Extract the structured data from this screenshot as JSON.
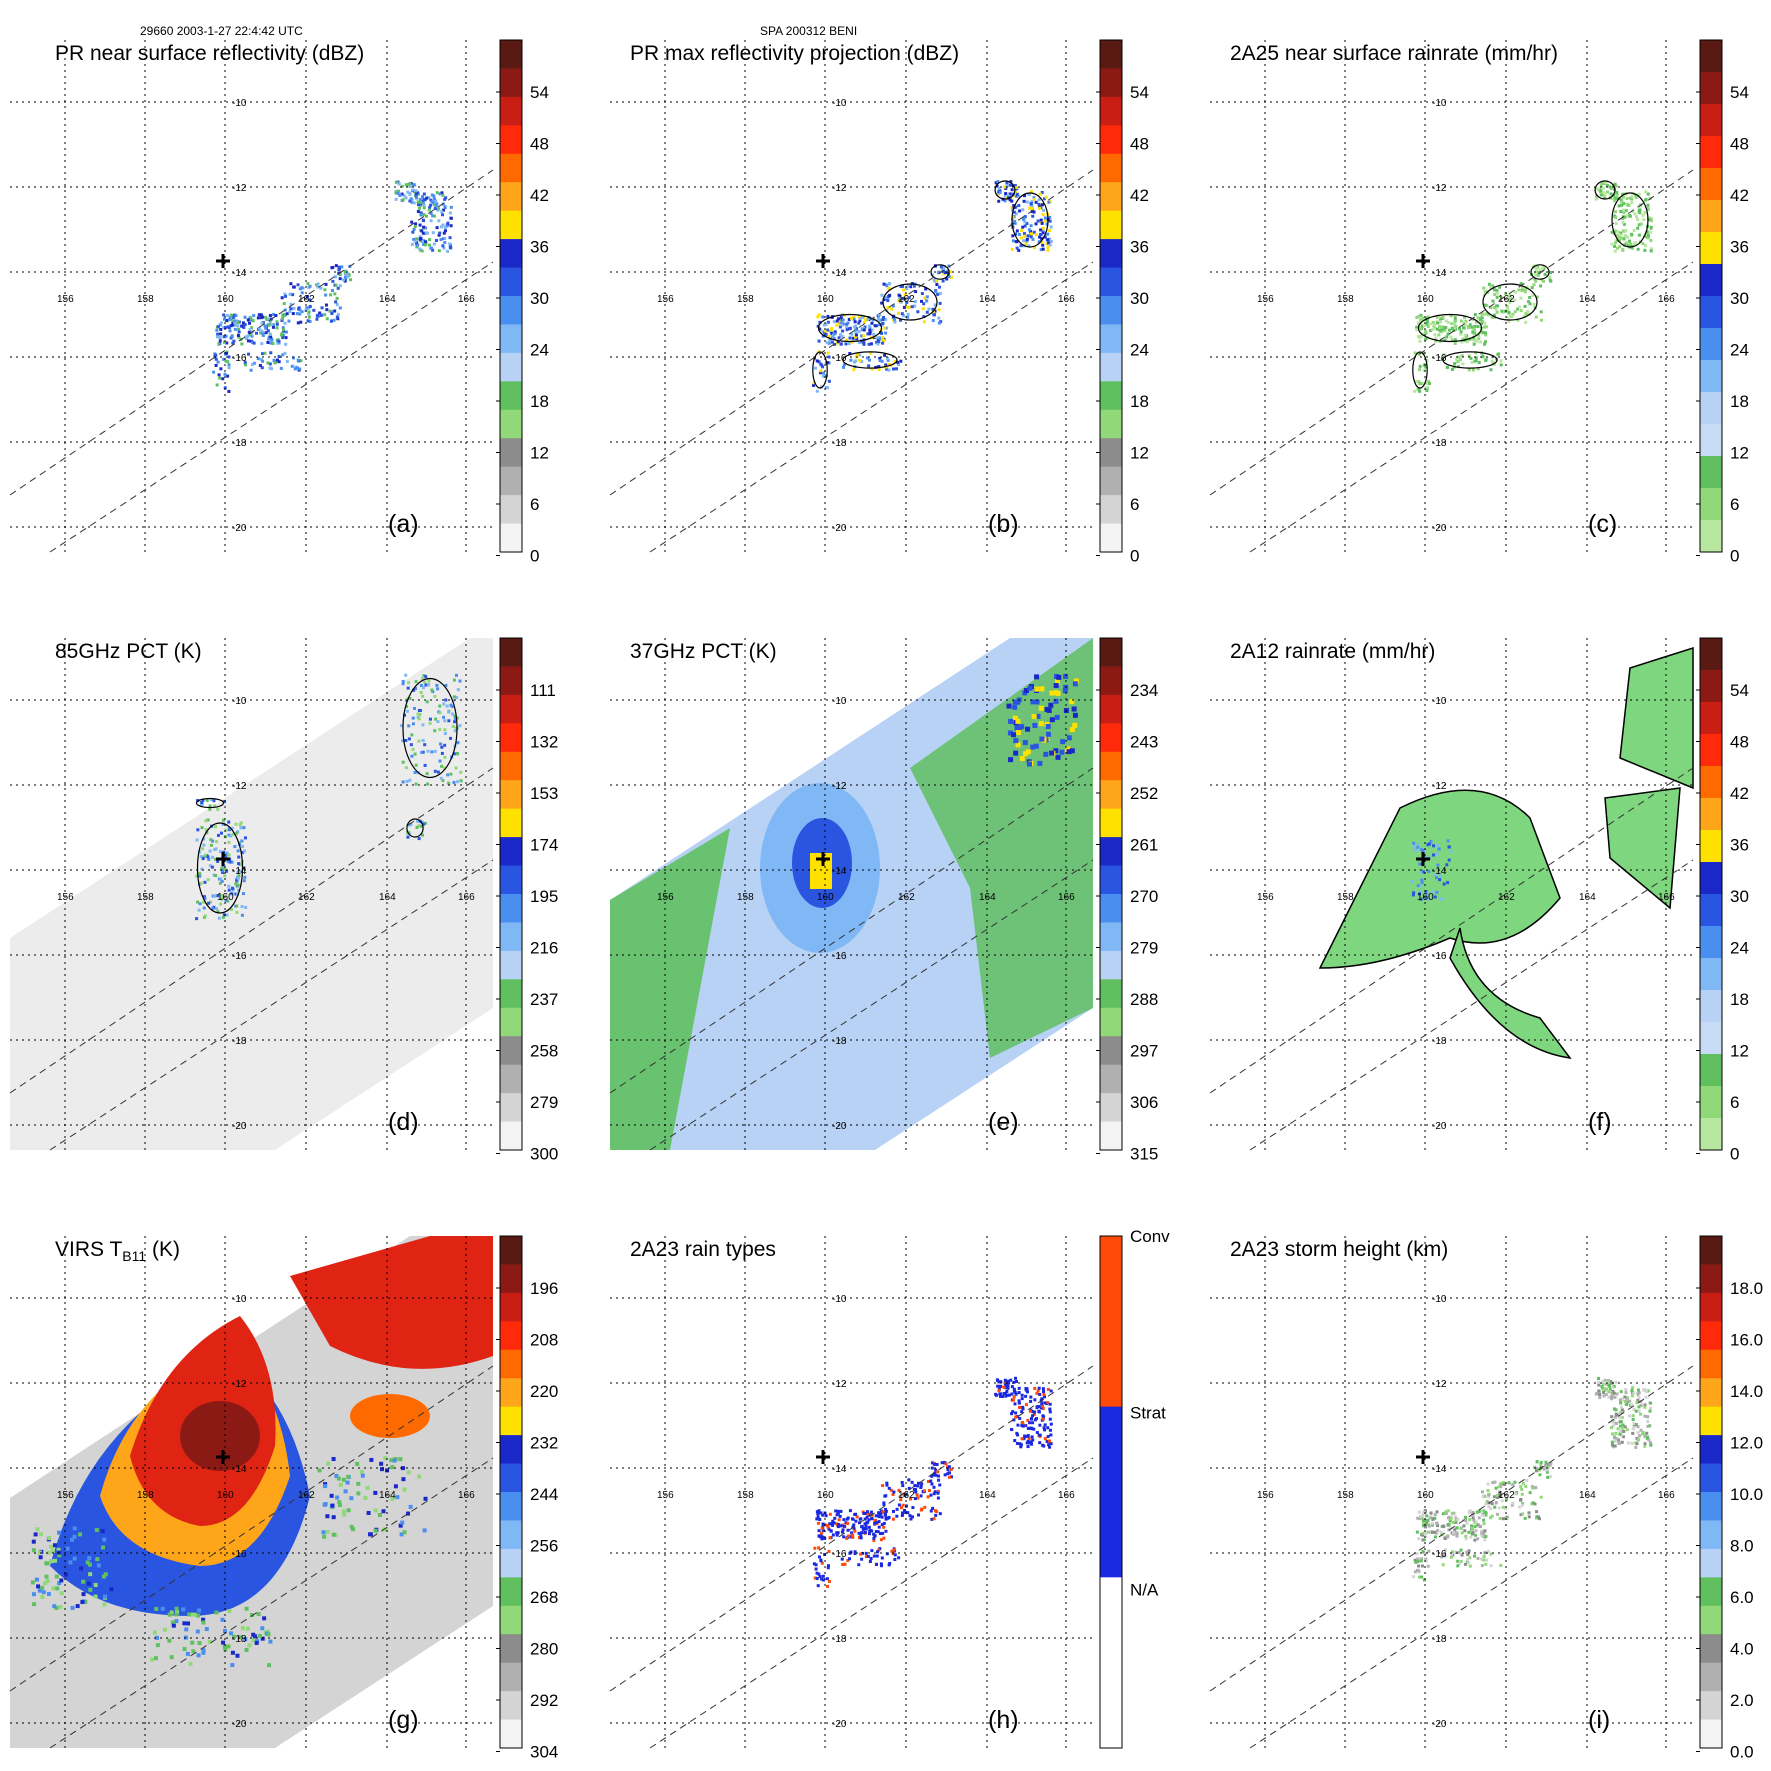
{
  "header": {
    "left": "29660 2003-1-27 22:4:42 UTC",
    "center": "SPA 200312 BENI"
  },
  "map_grid": {
    "lon_labels": [
      "156",
      "158",
      "160",
      "162",
      "164",
      "166"
    ],
    "lat_labels": [
      "-10",
      "-12",
      "-14",
      "-16",
      "-18",
      "-20"
    ]
  },
  "panels": [
    {
      "id": "a",
      "label": "(a)",
      "title": "PR near surface reflectivity (dBZ)",
      "colorbar": {
        "style": "refl",
        "ticks": [
          "54",
          "48",
          "42",
          "36",
          "30",
          "24",
          "18",
          "12",
          "6",
          "0"
        ]
      },
      "content": "pr_near",
      "palette": "refl"
    },
    {
      "id": "b",
      "label": "(b)",
      "title": "PR max reflectivity projection (dBZ)",
      "colorbar": {
        "style": "refl",
        "ticks": [
          "54",
          "48",
          "42",
          "36",
          "30",
          "24",
          "18",
          "12",
          "6",
          "0"
        ]
      },
      "content": "pr_max",
      "palette": "refl"
    },
    {
      "id": "c",
      "label": "(c)",
      "title": "2A25 near surface rainrate (mm/hr)",
      "colorbar": {
        "style": "rain",
        "ticks": [
          "54",
          "48",
          "42",
          "36",
          "30",
          "24",
          "18",
          "12",
          "6",
          "0"
        ]
      },
      "content": "rain25",
      "palette": "rain"
    },
    {
      "id": "d",
      "label": "(d)",
      "title": "85GHz PCT (K)",
      "colorbar": {
        "style": "pct",
        "ticks": [
          "111",
          "132",
          "153",
          "174",
          "195",
          "216",
          "237",
          "258",
          "279",
          "300"
        ]
      },
      "content": "pct85",
      "palette": "pct"
    },
    {
      "id": "e",
      "label": "(e)",
      "title": "37GHz PCT (K)",
      "colorbar": {
        "style": "pct",
        "ticks": [
          "234",
          "243",
          "252",
          "261",
          "270",
          "279",
          "288",
          "297",
          "306",
          "315"
        ]
      },
      "content": "pct37",
      "palette": "pct"
    },
    {
      "id": "f",
      "label": "(f)",
      "title": "2A12 rainrate (mm/hr)",
      "colorbar": {
        "style": "rain",
        "ticks": [
          "54",
          "48",
          "42",
          "36",
          "30",
          "24",
          "18",
          "12",
          "6",
          "0"
        ]
      },
      "content": "rain12",
      "palette": "rain"
    },
    {
      "id": "g",
      "label": "(g)",
      "title": "VIRS T",
      "title_sub": "B11",
      "title_tail": " (K)",
      "colorbar": {
        "style": "virs",
        "ticks": [
          "196",
          "208",
          "220",
          "232",
          "244",
          "256",
          "268",
          "280",
          "292",
          "304"
        ]
      },
      "content": "virs",
      "palette": "virs"
    },
    {
      "id": "h",
      "label": "(h)",
      "title": "2A23 rain types",
      "colorbar": {
        "style": "types",
        "ticks": [
          "Conv",
          "Strat",
          "N/A"
        ]
      },
      "content": "types",
      "palette": "types"
    },
    {
      "id": "i",
      "label": "(i)",
      "title": "2A23 storm height (km)",
      "colorbar": {
        "style": "height",
        "ticks": [
          "18.0",
          "16.0",
          "14.0",
          "12.0",
          "10.0",
          "8.0",
          "6.0",
          "4.0",
          "2.0",
          "0.0"
        ]
      },
      "content": "height",
      "palette": "height"
    }
  ]
}
